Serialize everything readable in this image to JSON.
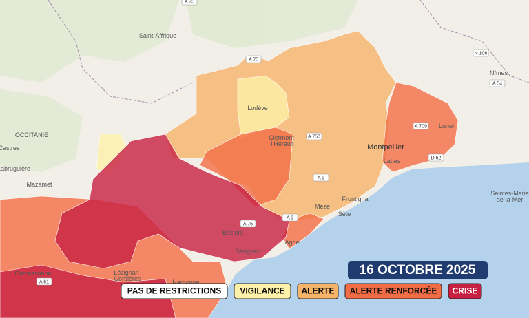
{
  "title": "16 OCTOBRE 2025",
  "legend": [
    {
      "label": "PAS DE RESTRICTIONS",
      "color": "#ffffff"
    },
    {
      "label": "VIGILANCE",
      "color": "#fdf0a8"
    },
    {
      "label": "ALERTE",
      "color": "#f6b46a"
    },
    {
      "label": "ALERTE RENFORCÉE",
      "color": "#f26d45"
    },
    {
      "label": "CRISE",
      "color": "#c82042"
    }
  ],
  "places": [
    {
      "lines": [
        "Saint-Affrique"
      ]
    },
    {
      "lines": [
        "Nîmes"
      ]
    },
    {
      "lines": [
        "Lodève"
      ]
    },
    {
      "lines": [
        "Clermont-",
        "l'Hérault"
      ]
    },
    {
      "lines": [
        "Montpellier"
      ]
    },
    {
      "lines": [
        "Lunel"
      ]
    },
    {
      "lines": [
        "Lattes"
      ]
    },
    {
      "lines": [
        "Frontignan"
      ]
    },
    {
      "lines": [
        "Mèze"
      ]
    },
    {
      "lines": [
        "Sète"
      ]
    },
    {
      "lines": [
        "OCCITANIE"
      ]
    },
    {
      "lines": [
        "Castres"
      ]
    },
    {
      "lines": [
        "Labruguière"
      ]
    },
    {
      "lines": [
        "Mazamet"
      ]
    },
    {
      "lines": [
        "Béziers"
      ]
    },
    {
      "lines": [
        "Sérignan"
      ]
    },
    {
      "lines": [
        "Agde"
      ]
    },
    {
      "lines": [
        "Carcassonne"
      ]
    },
    {
      "lines": [
        "Lézignan-",
        "Corbières"
      ]
    },
    {
      "lines": [
        "Narbonne"
      ]
    },
    {
      "lines": [
        "Saintes-Marie",
        "de-la-Mer"
      ]
    }
  ],
  "roads": [
    "A 75",
    "A 75",
    "N 106",
    "A 54",
    "A 709",
    "A 750",
    "D 62",
    "A 9",
    "A 9",
    "A 75",
    "A 61"
  ]
}
